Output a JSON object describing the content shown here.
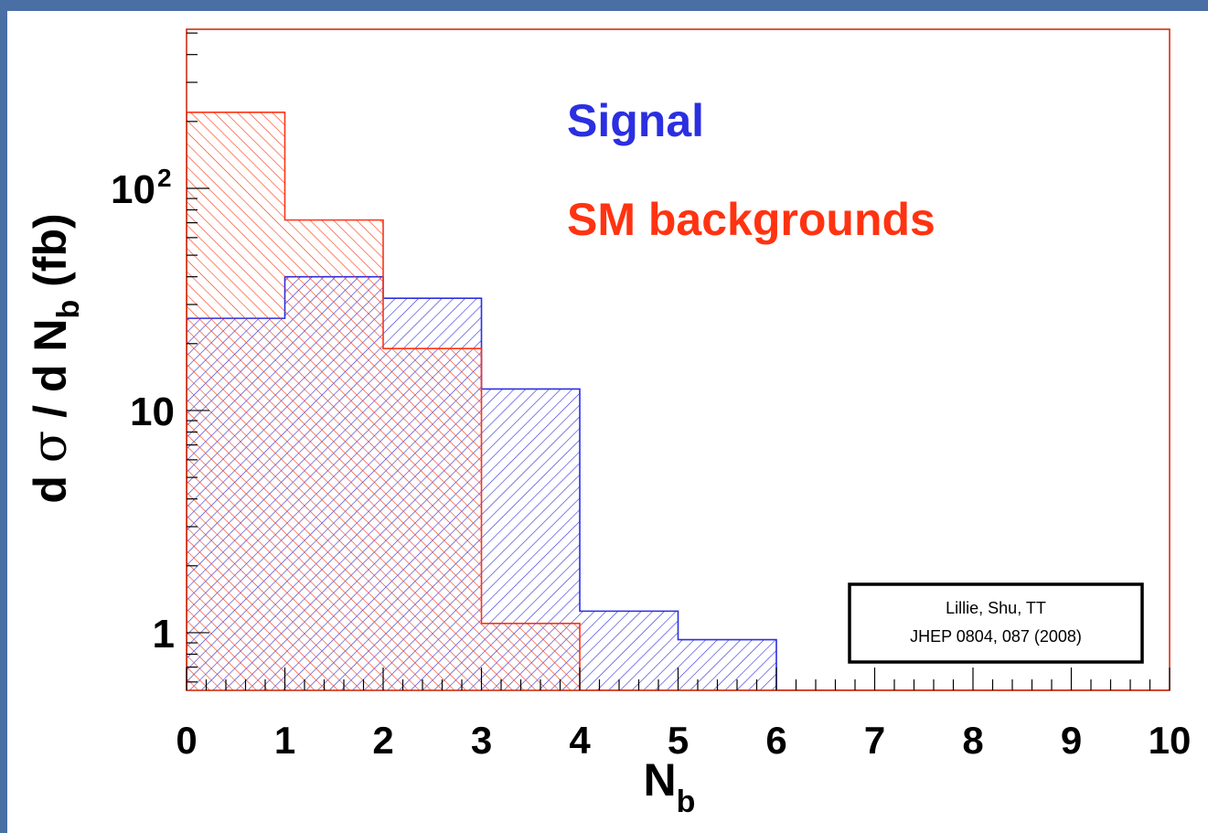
{
  "chart_data": {
    "type": "histogram",
    "xlabel": "N",
    "xlabel_sub": "b",
    "ylabel_prefix": "d ",
    "ylabel_sigma": "σ",
    "ylabel_mid": " / d N",
    "ylabel_sub": "b",
    "ylabel_suffix": " (fb)",
    "xlim": [
      0,
      10
    ],
    "ylim": [
      0.55,
      520
    ],
    "yscale": "log",
    "x_ticks": [
      "0",
      "1",
      "2",
      "3",
      "4",
      "5",
      "6",
      "7",
      "8",
      "9",
      "10"
    ],
    "y_ticks": [
      {
        "value": 1,
        "label": "1"
      },
      {
        "value": 10,
        "label": "10"
      },
      {
        "value": 100,
        "label": "10",
        "sup": "2"
      }
    ],
    "bin_edges": [
      0,
      1,
      2,
      3,
      4,
      5,
      6,
      7,
      8,
      9,
      10
    ],
    "series": [
      {
        "name": "SM backgrounds",
        "color": "#ff3311",
        "values": [
          220,
          72,
          19,
          1.1,
          0,
          0,
          0,
          0,
          0,
          0
        ],
        "hatch": "\\"
      },
      {
        "name": "Signal",
        "color": "#2b2fe0",
        "values": [
          26,
          40,
          32,
          12.5,
          1.25,
          0.93,
          0,
          0,
          0,
          0
        ],
        "hatch": "/"
      }
    ],
    "legend_placement": "top-right",
    "citation": [
      "Lillie, Shu, TT",
      "JHEP 0804, 087 (2008)"
    ]
  }
}
